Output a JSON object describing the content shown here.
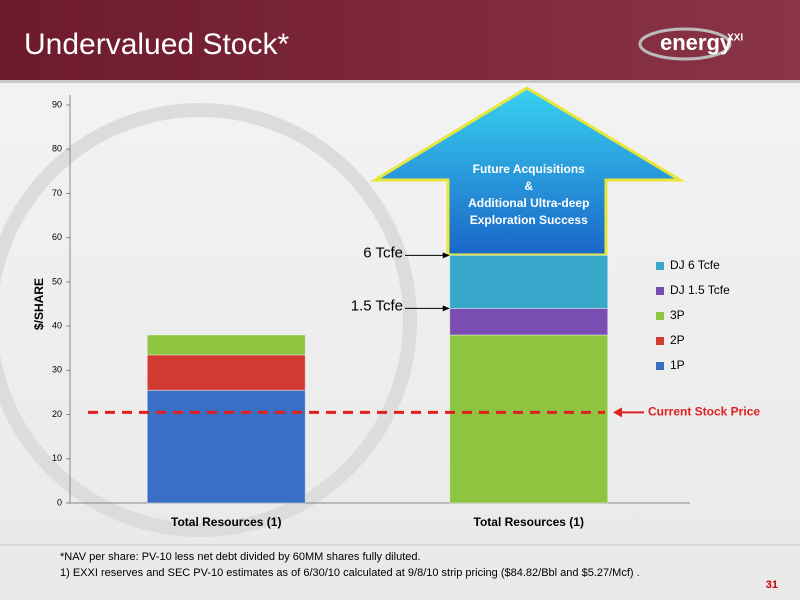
{
  "header": {
    "title": "Undervalued Stock*",
    "logo": "energy",
    "logo_suffix": "XXI"
  },
  "chart_data": {
    "type": "stacked-bar",
    "categories": [
      "Total Resources (1)",
      "Total Resources (1)"
    ],
    "series": [
      {
        "name": "1P",
        "color": "#3b6fc6",
        "values": [
          25.5,
          null
        ]
      },
      {
        "name": "2P",
        "color": "#d23b32",
        "values": [
          8,
          null
        ]
      },
      {
        "name": "3P",
        "color": "#8dc540",
        "values": [
          4.5,
          38
        ]
      },
      {
        "name": "DJ 1.5 Tcfe",
        "color": "#7a4db2",
        "values": [
          null,
          6
        ]
      },
      {
        "name": "DJ 6 Tcfe",
        "color": "#37a8c9",
        "values": [
          null,
          12
        ]
      }
    ],
    "y_label": "$/SHARE",
    "ylim": [
      0,
      90
    ],
    "yticks": [
      0,
      10,
      20,
      30,
      40,
      50,
      60,
      70,
      80,
      90
    ],
    "legend": "right",
    "annotations": [
      {
        "text": "6 Tcfe",
        "value": 56
      },
      {
        "text": "1.5 Tcfe",
        "value": 44
      }
    ],
    "reference_line": {
      "text": "Current Stock Price",
      "value": 20.5,
      "color": "#e02020"
    },
    "arrow_text": [
      "Future Acquisitions",
      "&",
      "Additional Ultra-deep",
      "Exploration Success"
    ]
  },
  "footer": {
    "notes": [
      "*NAV per share: PV-10 less net debt divided by 60MM shares fully diluted.",
      "1) EXXI reserves and SEC PV-10 estimates as of 6/30/10 calculated at 9/8/10 strip pricing ($84.82/Bbl and $5.27/Mcf) ."
    ],
    "page": "31"
  }
}
